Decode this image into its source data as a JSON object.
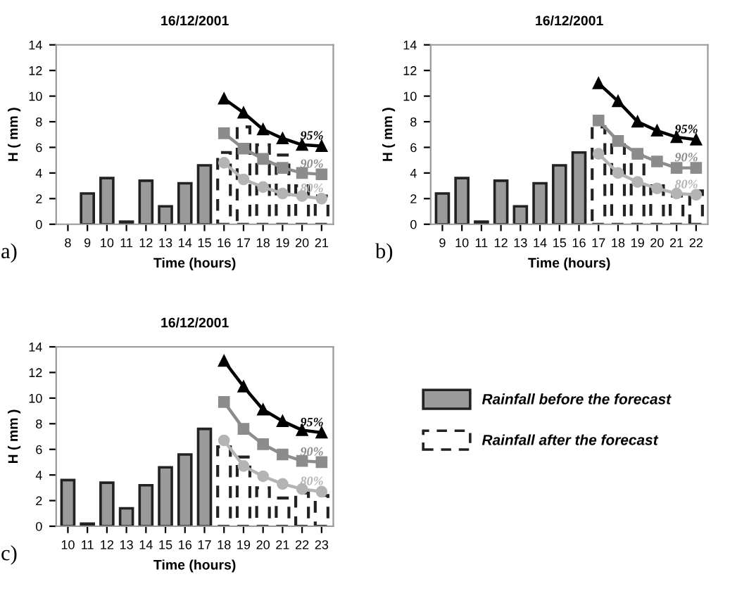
{
  "chart_data": [
    {
      "type": "bar",
      "title": "16/12/2001",
      "xlabel": "Time (hours)",
      "ylabel": "H ( mm )",
      "annotations": [
        "a)"
      ],
      "grid": false,
      "categories": [
        "8",
        "9",
        "10",
        "11",
        "12",
        "13",
        "14",
        "15",
        "16",
        "17",
        "18",
        "19",
        "20",
        "21"
      ],
      "ylim": [
        0,
        14
      ],
      "yticks": [
        0,
        2,
        4,
        6,
        8,
        10,
        12,
        14
      ],
      "series": [
        {
          "color": "#9a9a9a",
          "values": [
            null,
            2.4,
            3.6,
            0.2,
            3.4,
            1.4,
            3.2,
            4.6,
            null,
            null,
            null,
            null,
            null,
            null
          ]
        },
        {
          "color": "#ffffff",
          "line_style": "dashed",
          "values": [
            null,
            null,
            null,
            null,
            null,
            null,
            null,
            null,
            5.6,
            7.6,
            6.2,
            5.4,
            3.0,
            2.2
          ]
        },
        {
          "name": "95%",
          "type": "line",
          "color": "#000000",
          "marker": "triangle",
          "values": [
            null,
            null,
            null,
            null,
            null,
            null,
            null,
            null,
            9.8,
            8.7,
            7.4,
            6.7,
            6.2,
            6.1
          ]
        },
        {
          "name": "90%",
          "type": "line",
          "color": "#8c8c8c",
          "marker": "square",
          "values": [
            null,
            null,
            null,
            null,
            null,
            null,
            null,
            null,
            7.1,
            5.9,
            5.1,
            4.4,
            4.0,
            3.9
          ]
        },
        {
          "name": "80%",
          "type": "line",
          "color": "#b4b4b4",
          "marker": "circle",
          "values": [
            null,
            null,
            null,
            null,
            null,
            null,
            null,
            null,
            4.8,
            3.5,
            2.9,
            2.4,
            2.2,
            2.0
          ]
        }
      ]
    },
    {
      "type": "bar",
      "title": "16/12/2001",
      "xlabel": "Time (hours)",
      "ylabel": "H ( mm )",
      "annotations": [
        "b)"
      ],
      "grid": false,
      "legend": "bottom",
      "categories": [
        "9",
        "10",
        "11",
        "12",
        "13",
        "14",
        "15",
        "16",
        "17",
        "18",
        "19",
        "20",
        "21",
        "22"
      ],
      "ylim": [
        0,
        14
      ],
      "yticks": [
        0,
        2,
        4,
        6,
        8,
        10,
        12,
        14
      ],
      "series": [
        {
          "name": "Rainfall before the forecast",
          "color": "#9a9a9a",
          "values": [
            2.4,
            3.6,
            0.2,
            3.4,
            1.4,
            3.2,
            4.6,
            5.6,
            null,
            null,
            null,
            null,
            null,
            null
          ]
        },
        {
          "name": "Rainfall after the forecast",
          "color": "#ffffff",
          "line_style": "dashed",
          "values": [
            null,
            null,
            null,
            null,
            null,
            null,
            null,
            null,
            7.6,
            6.2,
            5.4,
            3.0,
            2.2,
            2.6
          ]
        },
        {
          "name": "95%",
          "type": "line",
          "color": "#000000",
          "marker": "triangle",
          "values": [
            null,
            null,
            null,
            null,
            null,
            null,
            null,
            null,
            11.0,
            9.6,
            8.0,
            7.3,
            6.8,
            6.6
          ]
        },
        {
          "name": "90%",
          "type": "line",
          "color": "#8c8c8c",
          "marker": "square",
          "values": [
            null,
            null,
            null,
            null,
            null,
            null,
            null,
            null,
            8.1,
            6.5,
            5.5,
            4.9,
            4.4,
            4.4
          ]
        },
        {
          "name": "80%",
          "type": "line",
          "color": "#b4b4b4",
          "marker": "circle",
          "values": [
            null,
            null,
            null,
            null,
            null,
            null,
            null,
            null,
            5.5,
            4.0,
            3.3,
            2.8,
            2.4,
            2.3
          ]
        }
      ]
    },
    {
      "type": "bar",
      "title": "16/12/2001",
      "xlabel": "Time (hours)",
      "ylabel": "H ( mm )",
      "annotations": [
        "c)"
      ],
      "grid": false,
      "categories": [
        "10",
        "11",
        "12",
        "13",
        "14",
        "15",
        "16",
        "17",
        "18",
        "19",
        "20",
        "21",
        "22",
        "23"
      ],
      "ylim": [
        0,
        14
      ],
      "yticks": [
        0,
        2,
        4,
        6,
        8,
        10,
        12,
        14
      ],
      "series": [
        {
          "color": "#9a9a9a",
          "values": [
            3.6,
            0.2,
            3.4,
            1.4,
            3.2,
            4.6,
            5.6,
            7.6,
            null,
            null,
            null,
            null,
            null,
            null
          ]
        },
        {
          "color": "#ffffff",
          "line_style": "dashed",
          "values": [
            null,
            null,
            null,
            null,
            null,
            null,
            null,
            null,
            6.2,
            5.4,
            3.0,
            2.2,
            2.6,
            2.4
          ]
        },
        {
          "name": "95%",
          "type": "line",
          "color": "#000000",
          "marker": "triangle",
          "values": [
            null,
            null,
            null,
            null,
            null,
            null,
            null,
            null,
            12.9,
            10.9,
            9.1,
            8.2,
            7.5,
            7.3
          ]
        },
        {
          "name": "90%",
          "type": "line",
          "color": "#8c8c8c",
          "marker": "square",
          "values": [
            null,
            null,
            null,
            null,
            null,
            null,
            null,
            null,
            9.7,
            7.6,
            6.4,
            5.6,
            5.1,
            5.0
          ]
        },
        {
          "name": "80%",
          "type": "line",
          "color": "#b4b4b4",
          "marker": "circle",
          "values": [
            null,
            null,
            null,
            null,
            null,
            null,
            null,
            null,
            6.7,
            4.7,
            3.9,
            3.3,
            2.9,
            2.7
          ]
        }
      ]
    }
  ]
}
